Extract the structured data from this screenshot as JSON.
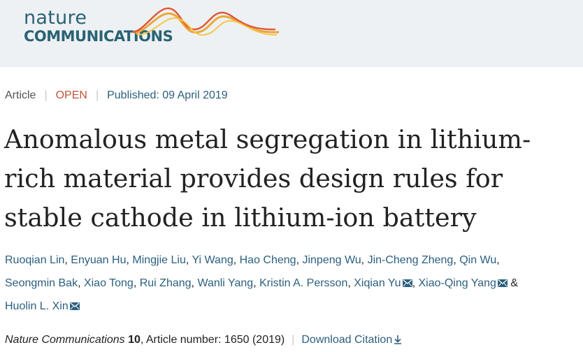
{
  "header": {
    "logo_line1": "nature",
    "logo_line2": "COMMUNICATIONS"
  },
  "meta": {
    "type": "Article",
    "access": "OPEN",
    "published": "Published: 09 April 2019"
  },
  "title": {
    "line1": "Anomalous metal segregation in lithium-",
    "line2": "rich material provides design rules for",
    "line3": "stable cathode in lithium-ion battery"
  },
  "authors": [
    {
      "name": "Ruoqian Lin",
      "email": false
    },
    {
      "name": "Enyuan Hu",
      "email": false
    },
    {
      "name": "Mingjie Liu",
      "email": false
    },
    {
      "name": "Yi Wang",
      "email": false
    },
    {
      "name": "Hao Cheng",
      "email": false
    },
    {
      "name": "Jinpeng Wu",
      "email": false
    },
    {
      "name": "Jin-Cheng Zheng",
      "email": false
    },
    {
      "name": "Qin Wu",
      "email": false
    },
    {
      "name": "Seongmin Bak",
      "email": false
    },
    {
      "name": "Xiao Tong",
      "email": false
    },
    {
      "name": "Rui Zhang",
      "email": false
    },
    {
      "name": "Wanli Yang",
      "email": false
    },
    {
      "name": "Kristin A. Persson",
      "email": false
    },
    {
      "name": "Xiqian Yu",
      "email": true
    },
    {
      "name": "Xiao-Qing Yang",
      "email": true
    },
    {
      "name": "Huolin L. Xin",
      "email": true
    }
  ],
  "citation": {
    "journal": "Nature Communications",
    "volume": "10",
    "article_number": ", Article number: 1650 (2019)",
    "download": "Download Citation"
  },
  "colors": {
    "header_bg": "#eef1f4",
    "link": "#2b5f7e",
    "open": "#c0553b",
    "logo": "#2a6374"
  }
}
